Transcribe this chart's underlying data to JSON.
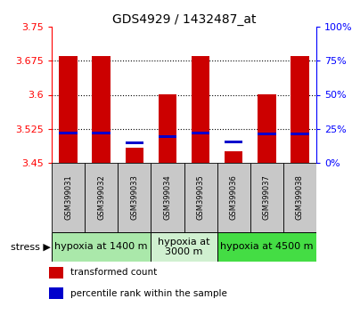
{
  "title": "GDS4929 / 1432487_at",
  "samples": [
    "GSM399031",
    "GSM399032",
    "GSM399033",
    "GSM399034",
    "GSM399035",
    "GSM399036",
    "GSM399037",
    "GSM399038"
  ],
  "red_values": [
    3.686,
    3.686,
    3.483,
    3.6,
    3.686,
    3.475,
    3.6,
    3.686
  ],
  "blue_values": [
    3.515,
    3.515,
    3.495,
    3.508,
    3.515,
    3.497,
    3.513,
    3.513
  ],
  "y_min": 3.45,
  "y_max": 3.75,
  "y_ticks": [
    3.45,
    3.525,
    3.6,
    3.675,
    3.75
  ],
  "y_right_ticks": [
    0,
    25,
    50,
    75,
    100
  ],
  "groups": [
    {
      "label": "hypoxia at 1400 m",
      "start": 0,
      "end": 3,
      "color": "#aae8aa"
    },
    {
      "label": "hypoxia at\n3000 m",
      "start": 3,
      "end": 5,
      "color": "#d0f0d0"
    },
    {
      "label": "hypoxia at 4500 m",
      "start": 5,
      "end": 8,
      "color": "#44dd44"
    }
  ],
  "bar_width": 0.55,
  "red_color": "#cc0000",
  "blue_color": "#0000cc",
  "blue_bar_height": 0.006,
  "label_bg": "#c8c8c8",
  "legend_items": [
    {
      "color": "#cc0000",
      "label": "transformed count"
    },
    {
      "color": "#0000cc",
      "label": "percentile rank within the sample"
    }
  ],
  "title_fontsize": 10,
  "tick_fontsize": 8,
  "sample_fontsize": 6,
  "group_fontsize": 8
}
